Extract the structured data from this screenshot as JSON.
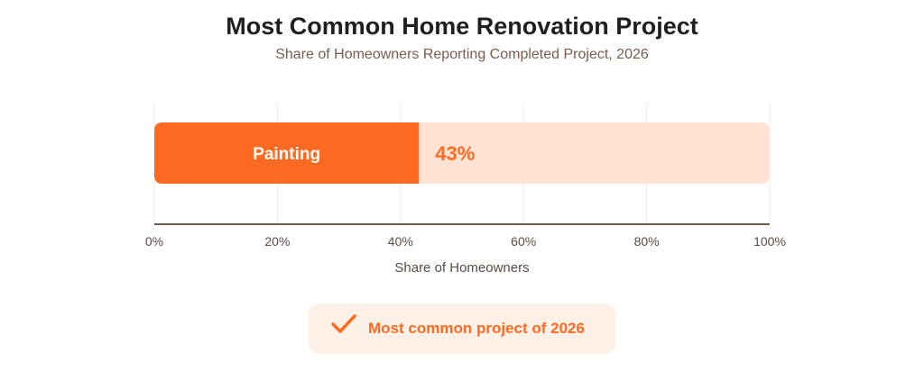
{
  "title": "Most Common Home Renovation Project",
  "subtitle": "Share of Homeowners Reporting Completed Project, 2026",
  "chart_data": {
    "type": "bar",
    "orientation": "horizontal",
    "categories": [
      "Painting"
    ],
    "values": [
      43
    ],
    "value_labels": [
      "43%"
    ],
    "xlabel": "Share of Homeowners",
    "ylabel": "",
    "xlim": [
      0,
      100
    ],
    "x_ticks": [
      0,
      20,
      40,
      60,
      80,
      100
    ],
    "x_tick_labels": [
      "0%",
      "20%",
      "40%",
      "60%",
      "80%",
      "100%"
    ],
    "grid": true,
    "legend": "none"
  },
  "colors": {
    "bar_fill": "#ff6a23",
    "bar_track": "#fee2d3",
    "axis": "#6b5b55",
    "grid": "#ececec",
    "accent_text": "#ff6a23"
  },
  "callout": {
    "icon": "check-icon",
    "text": "Most common project of 2026"
  }
}
